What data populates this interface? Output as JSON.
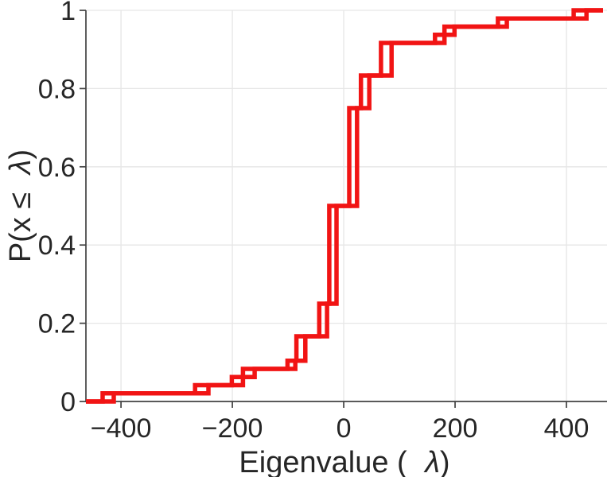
{
  "figure": {
    "background_color": "#ffffff",
    "text_color": "#262626",
    "axis_color": "#424242",
    "grid_color": "#e6e6e6"
  },
  "chart_data": {
    "type": "line",
    "subtype": "empirical-cdf-stairs",
    "title": "",
    "xlabel": "Eigenvalue ( λ)",
    "xlabel_symbol": "λ",
    "ylabel": "P(x ≤ λ)",
    "ylabel_symbol": "λ",
    "xlim": [
      -463,
      470
    ],
    "ylim": [
      0,
      1
    ],
    "x_ticks": [
      -400,
      -200,
      0,
      200,
      400
    ],
    "x_tick_labels": [
      "−400",
      "−200",
      "0",
      "200",
      "400"
    ],
    "y_ticks": [
      0,
      0.2,
      0.4,
      0.6,
      0.8,
      1
    ],
    "y_tick_labels": [
      "0",
      "0.2",
      "0.4",
      "0.6",
      "0.8",
      "1"
    ],
    "grid": true,
    "legend": "none",
    "line_color": "#f11414",
    "series": [
      {
        "name": "ecdf-step-line-1",
        "start": [
          -463,
          0
        ],
        "end_x": 466,
        "steps": [
          [
            -433,
            0.0208
          ],
          [
            -267,
            0.0417
          ],
          [
            -201,
            0.0625
          ],
          [
            -181,
            0.0833
          ],
          [
            -101,
            0.1042
          ],
          [
            -85,
            0.1667
          ],
          [
            -44,
            0.25
          ],
          [
            -26,
            0.5
          ],
          [
            10,
            0.75
          ],
          [
            31,
            0.8333
          ],
          [
            67,
            0.9167
          ],
          [
            164,
            0.9375
          ],
          [
            181,
            0.9583
          ],
          [
            277,
            0.9792
          ],
          [
            413,
            1
          ]
        ]
      },
      {
        "name": "ecdf-step-line-2",
        "start": [
          -463,
          0
        ],
        "end_x": 466,
        "steps": [
          [
            -413,
            0.0208
          ],
          [
            -243,
            0.0417
          ],
          [
            -181,
            0.0625
          ],
          [
            -160,
            0.0833
          ],
          [
            -87,
            0.1042
          ],
          [
            -69,
            0.1667
          ],
          [
            -30,
            0.25
          ],
          [
            -13,
            0.5
          ],
          [
            24,
            0.75
          ],
          [
            46,
            0.8333
          ],
          [
            86,
            0.9167
          ],
          [
            181,
            0.9375
          ],
          [
            199,
            0.9583
          ],
          [
            293,
            0.9792
          ],
          [
            436,
            1
          ]
        ]
      }
    ]
  }
}
